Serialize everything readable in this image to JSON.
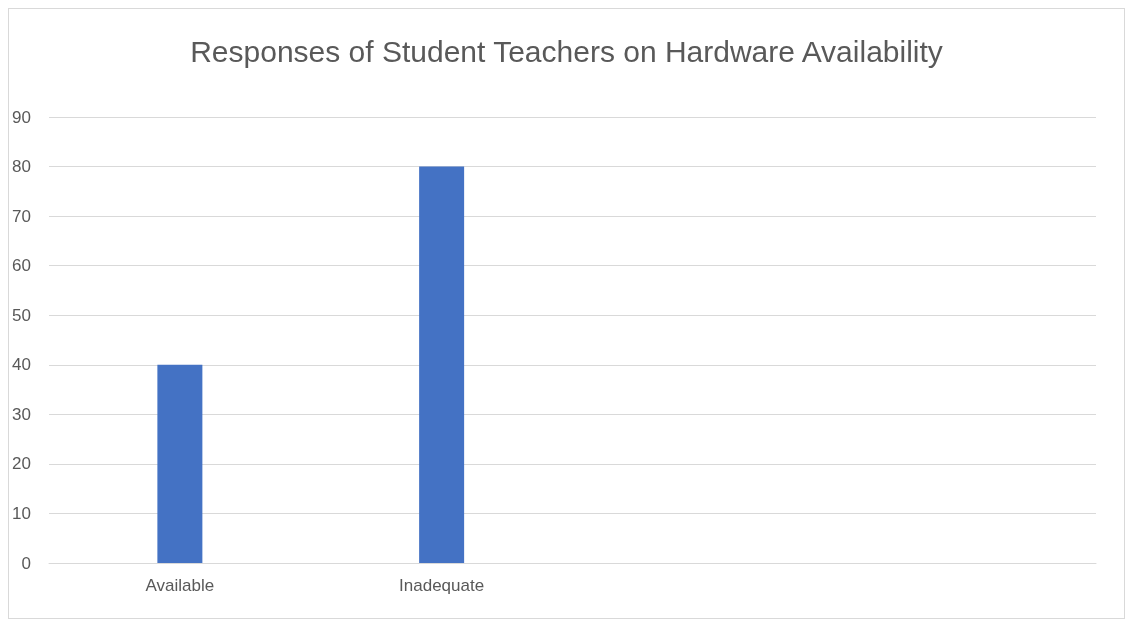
{
  "chart_data": {
    "type": "bar",
    "title": "Responses of Student Teachers on Hardware Availability",
    "categories": [
      "Available",
      "Inadequate",
      null,
      null
    ],
    "values": [
      40,
      80,
      null,
      null
    ],
    "color": "#4472c4",
    "ylim": [
      0,
      90
    ],
    "yticks": [
      0,
      10,
      20,
      30,
      40,
      50,
      60,
      70,
      80,
      90
    ],
    "grid": "y"
  }
}
